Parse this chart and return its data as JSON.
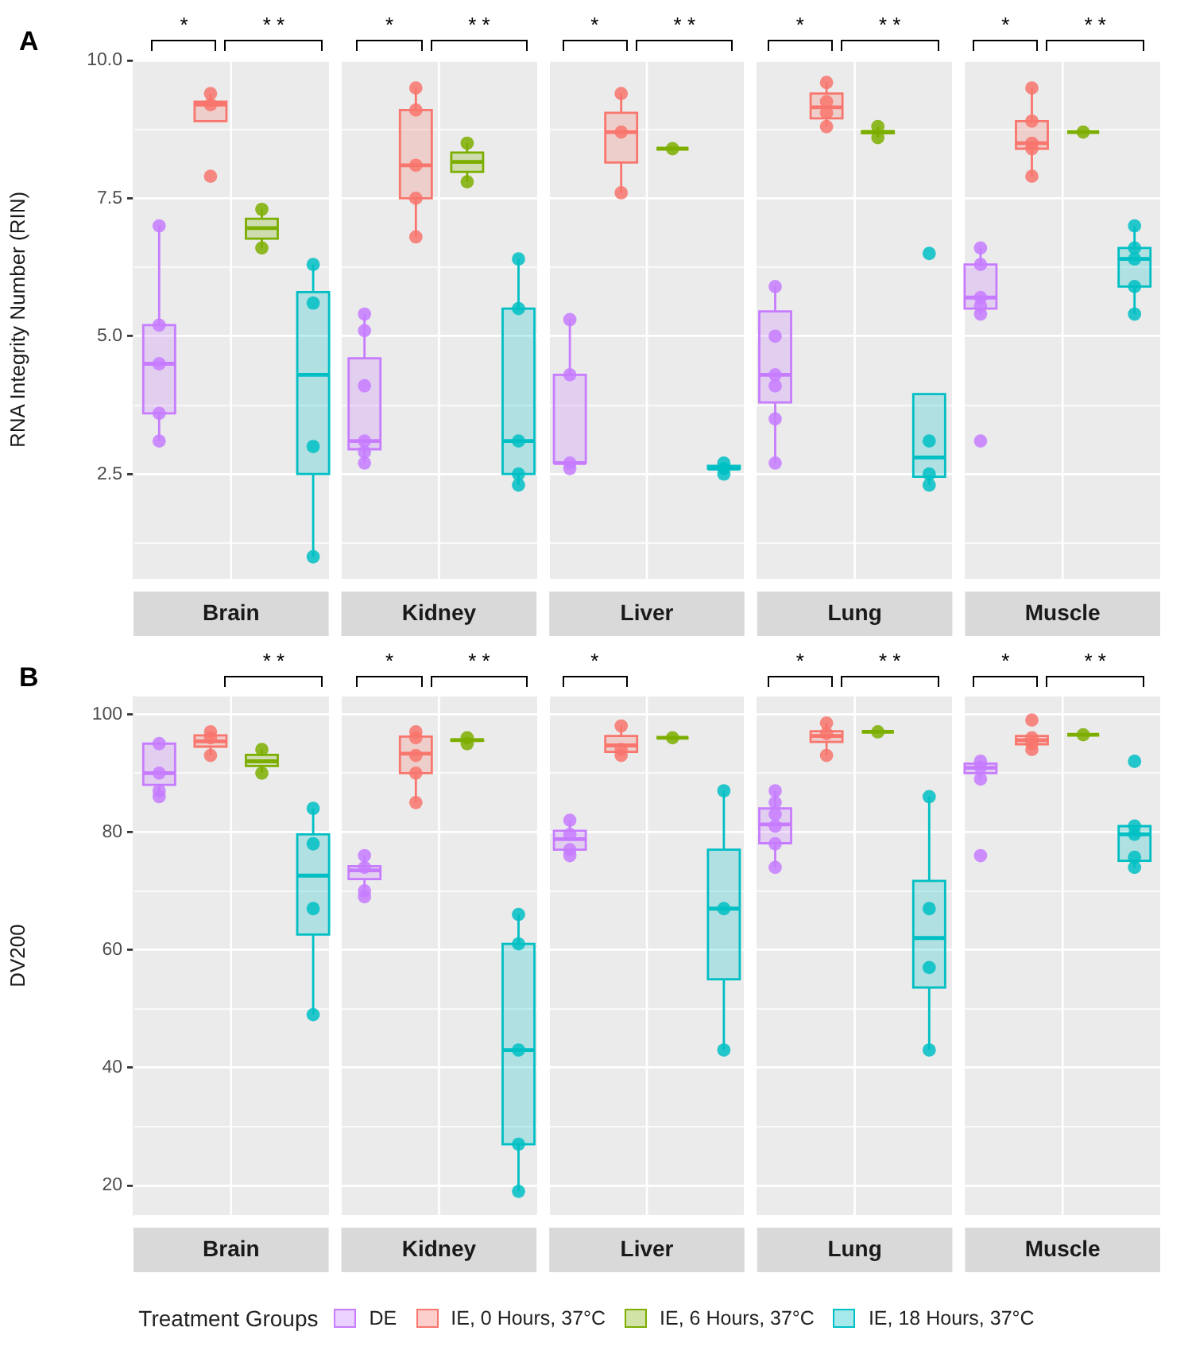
{
  "chart_data": [
    {
      "type": "box",
      "title": "A",
      "ylabel": "RNA Integrity Number (RIN)",
      "legend": "bottom",
      "legend_title": "Treatment Groups",
      "tick_labels": "y",
      "grid": true,
      "ylim": [
        0.6,
        10
      ],
      "yticks": [
        {
          "value": 1.25,
          "label": null
        },
        2.5,
        {
          "value": 3.75,
          "label": null
        },
        {
          "value": 5,
          "label": "5.0"
        },
        {
          "value": 6.25,
          "label": null
        },
        7.5,
        {
          "value": 8.75,
          "label": null
        },
        {
          "value": 10,
          "label": "10.0"
        }
      ],
      "categories": [
        null,
        null,
        null,
        null,
        null,
        null,
        null,
        null,
        null,
        null,
        null,
        null,
        null,
        null,
        null,
        null,
        null,
        null,
        null,
        null
      ],
      "series": [
        {
          "name": "DE",
          "color": "#c77cff",
          "boxes": [
            {
              "low": 3.1,
              "q1": 3.6,
              "median": 4.5,
              "q3": 5.2,
              "high": 7.0
            },
            null,
            null,
            null,
            {
              "low": 2.7,
              "q1": 2.95,
              "median": 3.1,
              "q3": 4.6,
              "high": 5.4
            },
            null,
            null,
            null,
            {
              "low": 2.6,
              "q1": 2.7,
              "median": 2.7,
              "q3": 4.3,
              "high": 5.3
            },
            null,
            null,
            null,
            {
              "low": 2.7,
              "q1": 3.8,
              "median": 4.3,
              "q3": 5.45,
              "high": 5.9
            },
            null,
            null,
            null,
            {
              "low": 5.4,
              "q1": 5.5,
              "median": 5.7,
              "q3": 6.3,
              "high": 6.6
            },
            null,
            null,
            null
          ]
        },
        {
          "name": "IE, 0 Hours, 37°C",
          "color": "#f8766d",
          "boxes": [
            null,
            {
              "low": 8.9,
              "q1": 8.9,
              "median": 9.2,
              "q3": 9.25,
              "high": 9.4
            },
            null,
            null,
            null,
            {
              "low": 6.8,
              "q1": 7.5,
              "median": 8.1,
              "q3": 9.1,
              "high": 9.5
            },
            null,
            null,
            null,
            {
              "low": 7.6,
              "q1": 8.15,
              "median": 8.7,
              "q3": 9.05,
              "high": 9.4
            },
            null,
            null,
            null,
            {
              "low": 8.8,
              "q1": 8.95,
              "median": 9.15,
              "q3": 9.4,
              "high": 9.6
            },
            null,
            null,
            null,
            {
              "low": 7.9,
              "q1": 8.4,
              "median": 8.5,
              "q3": 8.9,
              "high": 9.5
            },
            null,
            null
          ]
        },
        {
          "name": "IE, 6 Hours, 37°C",
          "color": "#7cae00",
          "boxes": [
            null,
            null,
            {
              "low": 6.6,
              "q1": 6.77,
              "median": 6.96,
              "q3": 7.13,
              "high": 7.3
            },
            null,
            null,
            null,
            {
              "low": 7.8,
              "q1": 7.98,
              "median": 8.16,
              "q3": 8.33,
              "high": 8.5
            },
            null,
            null,
            null,
            {
              "low": 8.4,
              "q1": 8.4,
              "median": 8.4,
              "q3": 8.4,
              "high": 8.4
            },
            null,
            null,
            null,
            {
              "low": 8.6,
              "q1": 8.68,
              "median": 8.7,
              "q3": 8.72,
              "high": 8.8
            },
            null,
            null,
            null,
            {
              "low": 8.7,
              "q1": 8.7,
              "median": 8.7,
              "q3": 8.7,
              "high": 8.7
            },
            null
          ]
        },
        {
          "name": "IE, 18 Hours, 37°C",
          "color": "#00bfc4",
          "boxes": [
            null,
            null,
            null,
            {
              "low": 1.0,
              "q1": 2.5,
              "median": 4.3,
              "q3": 5.8,
              "high": 6.3
            },
            null,
            null,
            null,
            {
              "low": 2.3,
              "q1": 2.5,
              "median": 3.1,
              "q3": 5.5,
              "high": 6.4
            },
            null,
            null,
            null,
            {
              "low": 2.5,
              "q1": 2.6,
              "median": 2.6,
              "q3": 2.65,
              "high": 2.7
            },
            null,
            null,
            null,
            {
              "low": 2.3,
              "q1": 2.45,
              "median": 2.8,
              "q3": 3.95,
              "high": 3.95
            },
            null,
            null,
            null,
            {
              "low": 5.4,
              "q1": 5.9,
              "median": 6.4,
              "q3": 6.6,
              "high": 7.0
            }
          ]
        },
        {
          "type": "scatter",
          "colors": [
            "#c77cff",
            "#f8766d",
            "#7cae00",
            "#00bfc4",
            "#c77cff",
            "#f8766d",
            "#7cae00",
            "#00bfc4",
            "#c77cff",
            "#f8766d",
            "#7cae00",
            "#00bfc4",
            "#c77cff",
            "#f8766d",
            "#7cae00",
            "#00bfc4",
            "#c77cff",
            "#f8766d",
            "#7cae00",
            "#00bfc4"
          ],
          "values": [
            7.0,
            9.4,
            7.3,
            6.3,
            5.4,
            9.5,
            8.5,
            6.4,
            5.3,
            9.4,
            8.4,
            2.7,
            5.9,
            9.6,
            8.8,
            6.5,
            6.6,
            9.5,
            8.7,
            7.0
          ]
        },
        {
          "type": "scatter",
          "colors": [
            "#c77cff",
            "#f8766d",
            "#7cae00",
            "#00bfc4",
            "#c77cff",
            "#f8766d",
            "#7cae00",
            "#00bfc4",
            "#c77cff",
            "#f8766d",
            "#7cae00",
            "#00bfc4",
            "#c77cff",
            "#f8766d",
            "#7cae00",
            "#00bfc4",
            "#c77cff",
            "#f8766d",
            "#7cae00",
            "#00bfc4"
          ],
          "values": [
            5.2,
            9.2,
            6.6,
            5.6,
            5.1,
            9.1,
            7.8,
            5.5,
            4.3,
            8.7,
            null,
            2.6,
            5.0,
            9.25,
            8.6,
            3.1,
            6.3,
            8.9,
            null,
            6.6
          ]
        },
        {
          "type": "scatter",
          "colors": [
            "#c77cff",
            "#f8766d",
            "#7cae00",
            "#00bfc4",
            "#c77cff",
            "#f8766d",
            "#7cae00",
            "#00bfc4",
            "#c77cff",
            "#f8766d",
            "#7cae00",
            "#00bfc4",
            "#c77cff",
            "#f8766d",
            "#7cae00",
            "#00bfc4",
            "#c77cff",
            "#f8766d",
            "#7cae00",
            "#00bfc4"
          ],
          "values": [
            4.5,
            7.9,
            null,
            3.0,
            4.1,
            8.1,
            null,
            3.1,
            2.7,
            7.6,
            null,
            2.5,
            4.3,
            9.05,
            null,
            2.5,
            5.7,
            8.5,
            null,
            6.4
          ]
        },
        {
          "type": "scatter",
          "colors": [
            "#c77cff",
            "#f8766d",
            "#7cae00",
            "#00bfc4",
            "#c77cff",
            "#f8766d",
            "#7cae00",
            "#00bfc4",
            "#c77cff",
            "#f8766d",
            "#7cae00",
            "#00bfc4",
            "#c77cff",
            "#f8766d",
            "#7cae00",
            "#00bfc4",
            "#c77cff",
            "#f8766d",
            "#7cae00",
            "#00bfc4"
          ],
          "values": [
            3.6,
            null,
            null,
            1.0,
            3.1,
            7.5,
            null,
            2.5,
            2.6,
            null,
            null,
            null,
            4.1,
            8.8,
            null,
            2.3,
            5.55,
            8.4,
            null,
            5.9
          ]
        },
        {
          "type": "scatter",
          "colors": [
            "#c77cff",
            "#f8766d",
            "#7cae00",
            "#00bfc4",
            "#c77cff",
            "#f8766d",
            "#7cae00",
            "#00bfc4",
            "#c77cff",
            "#f8766d",
            "#7cae00",
            "#00bfc4",
            "#c77cff",
            "#f8766d",
            "#7cae00",
            "#00bfc4",
            "#c77cff",
            "#f8766d",
            "#7cae00",
            "#00bfc4"
          ],
          "values": [
            3.1,
            null,
            null,
            null,
            2.9,
            6.8,
            null,
            2.3,
            null,
            null,
            null,
            null,
            3.5,
            null,
            null,
            null,
            5.4,
            7.9,
            null,
            5.4
          ]
        },
        {
          "type": "scatter",
          "colors": [
            "#c77cff",
            "#f8766d",
            "#7cae00",
            "#00bfc4",
            "#c77cff",
            "#f8766d",
            "#7cae00",
            "#00bfc4",
            "#c77cff",
            "#f8766d",
            "#7cae00",
            "#00bfc4",
            "#c77cff",
            "#f8766d",
            "#7cae00",
            "#00bfc4",
            "#c77cff",
            "#f8766d",
            "#7cae00",
            "#00bfc4"
          ],
          "values": [
            null,
            null,
            null,
            null,
            2.7,
            null,
            null,
            null,
            null,
            null,
            null,
            null,
            2.7,
            null,
            null,
            null,
            3.1,
            null,
            null,
            null
          ]
        }
      ],
      "annotations": [
        "Brain",
        "Kidney",
        "Liver",
        "Lung",
        "Muscle",
        "*",
        "* *",
        "*",
        "* *",
        "*",
        "* *",
        "*",
        "* *",
        "*",
        "* *"
      ]
    },
    {
      "type": "box",
      "title": "B",
      "ylabel": "DV200",
      "tick_labels": "y",
      "grid": true,
      "ylim": [
        15,
        103
      ],
      "yticks": [
        20,
        {
          "value": 30,
          "label": null
        },
        40,
        {
          "value": 50,
          "label": null
        },
        60,
        {
          "value": 70,
          "label": null
        },
        80,
        {
          "value": 90,
          "label": null
        },
        100
      ],
      "categories": [
        null,
        null,
        null,
        null,
        null,
        null,
        null,
        null,
        null,
        null,
        null,
        null,
        null,
        null,
        null,
        null,
        null,
        null,
        null,
        null
      ],
      "series": [
        {
          "color": "#c77cff",
          "boxes": [
            {
              "low": 86,
              "q1": 88,
              "median": 90,
              "q3": 95,
              "high": 95
            },
            null,
            null,
            null,
            {
              "low": 69,
              "q1": 72,
              "median": 73.5,
              "q3": 74.2,
              "high": 76
            },
            null,
            null,
            null,
            {
              "low": 76,
              "q1": 77,
              "median": 78.8,
              "q3": 80.2,
              "high": 82
            },
            null,
            null,
            null,
            {
              "low": 74,
              "q1": 78.1,
              "median": 81.3,
              "q3": 84,
              "high": 87
            },
            null,
            null,
            null,
            {
              "low": 89,
              "q1": 90,
              "median": 90.9,
              "q3": 91.6,
              "high": 92
            },
            null,
            null,
            null
          ]
        },
        {
          "color": "#f8766d",
          "boxes": [
            null,
            {
              "low": 93,
              "q1": 94.5,
              "median": 95.4,
              "q3": 96.4,
              "high": 97
            },
            null,
            null,
            null,
            {
              "low": 85,
              "q1": 90,
              "median": 93.3,
              "q3": 96.2,
              "high": 97
            },
            null,
            null,
            null,
            {
              "low": 93,
              "q1": 93.6,
              "median": 94.7,
              "q3": 96.3,
              "high": 98
            },
            null,
            null,
            null,
            {
              "low": 93,
              "q1": 95.3,
              "median": 96.3,
              "q3": 97.1,
              "high": 98.5
            },
            null,
            null,
            null,
            {
              "low": 94,
              "q1": 94.9,
              "median": 95.6,
              "q3": 96.3,
              "high": 96.3
            },
            null,
            null
          ]
        },
        {
          "color": "#7cae00",
          "boxes": [
            null,
            null,
            {
              "low": 90,
              "q1": 91.2,
              "median": 92,
              "q3": 93.1,
              "high": 94
            },
            null,
            null,
            null,
            {
              "low": 95,
              "q1": 95.5,
              "median": 95.6,
              "q3": 95.7,
              "high": 96
            },
            null,
            null,
            null,
            {
              "low": 96,
              "q1": 96,
              "median": 96,
              "q3": 96,
              "high": 96
            },
            null,
            null,
            null,
            {
              "low": 97,
              "q1": 97,
              "median": 97,
              "q3": 97,
              "high": 97
            },
            null,
            null,
            null,
            {
              "low": 96.5,
              "q1": 96.5,
              "median": 96.5,
              "q3": 96.5,
              "high": 96.5
            },
            null
          ]
        },
        {
          "color": "#00bfc4",
          "boxes": [
            null,
            null,
            null,
            {
              "low": 49,
              "q1": 62.6,
              "median": 72.6,
              "q3": 79.6,
              "high": 84
            },
            null,
            null,
            null,
            {
              "low": 19,
              "q1": 27,
              "median": 43,
              "q3": 61,
              "high": 66
            },
            null,
            null,
            null,
            {
              "low": 43,
              "q1": 55,
              "median": 67,
              "q3": 77,
              "high": 87
            },
            null,
            null,
            null,
            {
              "low": 43,
              "q1": 53.6,
              "median": 62,
              "q3": 71.7,
              "high": 86
            },
            null,
            null,
            null,
            {
              "low": 74,
              "q1": 75.1,
              "median": 79.6,
              "q3": 81,
              "high": 81
            }
          ]
        },
        {
          "type": "scatter",
          "colors": [
            "#c77cff",
            "#f8766d",
            "#7cae00",
            "#00bfc4",
            "#c77cff",
            "#f8766d",
            "#7cae00",
            "#00bfc4",
            "#c77cff",
            "#f8766d",
            "#7cae00",
            "#00bfc4",
            "#c77cff",
            "#f8766d",
            "#7cae00",
            "#00bfc4",
            "#c77cff",
            "#f8766d",
            "#7cae00",
            "#00bfc4"
          ],
          "values": [
            95,
            97,
            94,
            84,
            76,
            97,
            96,
            66,
            82,
            98,
            96,
            87,
            87,
            98.5,
            97,
            86,
            92,
            99,
            96.5,
            92
          ]
        },
        {
          "type": "scatter",
          "colors": [
            "#c77cff",
            "#f8766d",
            "#7cae00",
            "#00bfc4",
            "#c77cff",
            "#f8766d",
            "#7cae00",
            "#00bfc4",
            "#c77cff",
            "#f8766d",
            "#7cae00",
            "#00bfc4",
            "#c77cff",
            "#f8766d",
            "#7cae00",
            "#00bfc4",
            "#c77cff",
            "#f8766d",
            "#7cae00",
            "#00bfc4"
          ],
          "values": [
            90,
            96,
            90,
            78,
            74,
            96,
            95,
            61,
            79.6,
            94,
            null,
            67,
            85,
            96.7,
            null,
            67,
            91,
            96,
            null,
            81
          ]
        },
        {
          "type": "scatter",
          "colors": [
            "#c77cff",
            "#f8766d",
            "#7cae00",
            "#00bfc4",
            "#c77cff",
            "#f8766d",
            "#7cae00",
            "#00bfc4",
            "#c77cff",
            "#f8766d",
            "#7cae00",
            "#00bfc4",
            "#c77cff",
            "#f8766d",
            "#7cae00",
            "#00bfc4",
            "#c77cff",
            "#f8766d",
            "#7cae00",
            "#00bfc4"
          ],
          "values": [
            87,
            93,
            null,
            67,
            70,
            93,
            null,
            43,
            77,
            93,
            null,
            43,
            83,
            93,
            null,
            57,
            89,
            95,
            null,
            79.6
          ]
        },
        {
          "type": "scatter",
          "colors": [
            "#c77cff",
            "#f8766d",
            "#7cae00",
            "#00bfc4",
            "#c77cff",
            "#f8766d",
            "#7cae00",
            "#00bfc4",
            "#c77cff",
            "#f8766d",
            "#7cae00",
            "#00bfc4",
            "#c77cff",
            "#f8766d",
            "#7cae00",
            "#00bfc4",
            "#c77cff",
            "#f8766d",
            "#7cae00",
            "#00bfc4"
          ],
          "values": [
            86,
            null,
            null,
            49,
            69,
            90,
            null,
            27,
            76,
            null,
            null,
            null,
            81,
            null,
            null,
            43,
            76,
            94,
            null,
            75.7
          ]
        },
        {
          "type": "scatter",
          "colors": [
            "#c77cff",
            "#f8766d",
            "#7cae00",
            "#00bfc4",
            "#c77cff",
            "#f8766d",
            "#7cae00",
            "#00bfc4",
            "#c77cff",
            "#f8766d",
            "#7cae00",
            "#00bfc4",
            "#c77cff",
            "#f8766d",
            "#7cae00",
            "#00bfc4",
            "#c77cff",
            "#f8766d",
            "#7cae00",
            "#00bfc4"
          ],
          "values": [
            null,
            null,
            null,
            null,
            null,
            85,
            null,
            19,
            null,
            null,
            null,
            null,
            78,
            null,
            null,
            null,
            null,
            null,
            null,
            74
          ]
        },
        {
          "type": "scatter",
          "colors": [
            "#c77cff",
            "#f8766d",
            "#7cae00",
            "#00bfc4",
            "#c77cff",
            "#f8766d",
            "#7cae00",
            "#00bfc4",
            "#c77cff",
            "#f8766d",
            "#7cae00",
            "#00bfc4",
            "#c77cff",
            "#f8766d",
            "#7cae00",
            "#00bfc4",
            "#c77cff",
            "#f8766d",
            "#7cae00",
            "#00bfc4"
          ],
          "values": [
            null,
            null,
            null,
            null,
            null,
            null,
            null,
            null,
            null,
            null,
            null,
            null,
            74,
            null,
            null,
            null,
            null,
            null,
            null,
            null
          ]
        }
      ],
      "annotations": [
        "Brain",
        "Kidney",
        "Liver",
        "Lung",
        "Muscle",
        "* *",
        "*",
        "* *",
        "*",
        "*",
        "* *",
        "*",
        "* *"
      ]
    }
  ]
}
